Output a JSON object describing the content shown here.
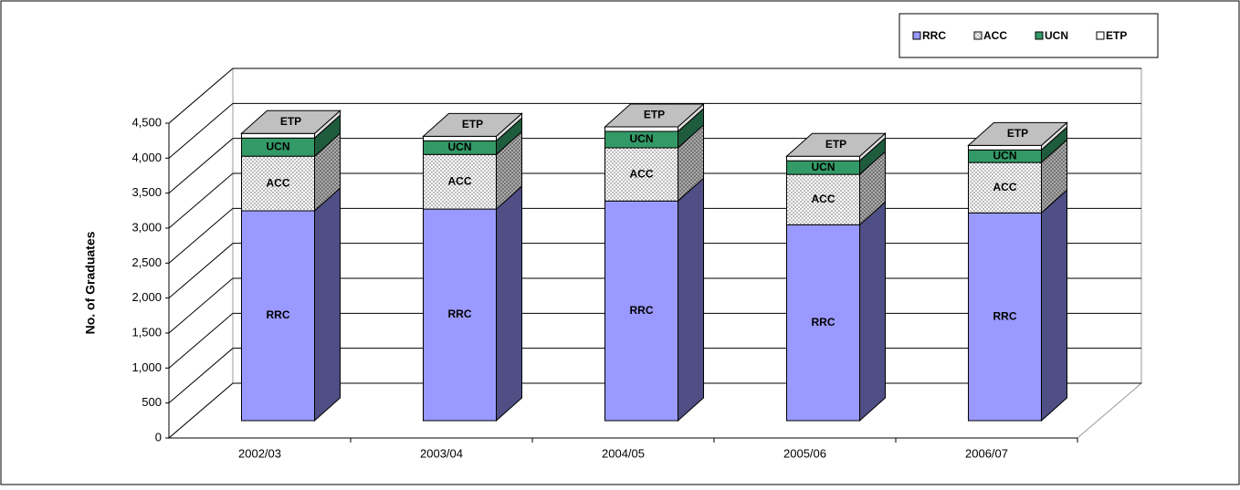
{
  "chart_data": {
    "type": "bar",
    "stacked": true,
    "three_d": true,
    "y_axis_label": "No. of  Graduates",
    "categories": [
      "2002/03",
      "2003/04",
      "2004/05",
      "2005/06",
      "2006/07"
    ],
    "series": [
      {
        "name": "RRC",
        "color": "#9999ff",
        "side_color": "#4f4f85",
        "values": [
          3000,
          3025,
          3140,
          2800,
          2970
        ]
      },
      {
        "name": "ACC",
        "color": "#ffffff",
        "side_color": "#999999",
        "pattern": "dots",
        "values": [
          780,
          780,
          760,
          720,
          720
        ]
      },
      {
        "name": "UCN",
        "color": "#339966",
        "side_color": "#1f5c3d",
        "values": [
          260,
          195,
          235,
          195,
          180
        ]
      },
      {
        "name": "ETP",
        "color": "#ffffff",
        "side_color": "#dddddd",
        "values": [
          65,
          65,
          65,
          65,
          65
        ]
      }
    ],
    "ylim": [
      0,
      4500
    ],
    "yticks": [
      0,
      500,
      {
        "value": 1000,
        "label": "1,000"
      },
      {
        "value": 1500,
        "label": "1,500"
      },
      {
        "value": 2000,
        "label": "2,000"
      },
      {
        "value": 2500,
        "label": "2,500"
      },
      {
        "value": 3000,
        "label": "3,000"
      },
      {
        "value": 3500,
        "label": "3,500"
      },
      {
        "value": 4000,
        "label": "4,000"
      },
      {
        "value": 4500,
        "label": "4,500"
      }
    ],
    "grid": true,
    "legend": "top-right"
  }
}
